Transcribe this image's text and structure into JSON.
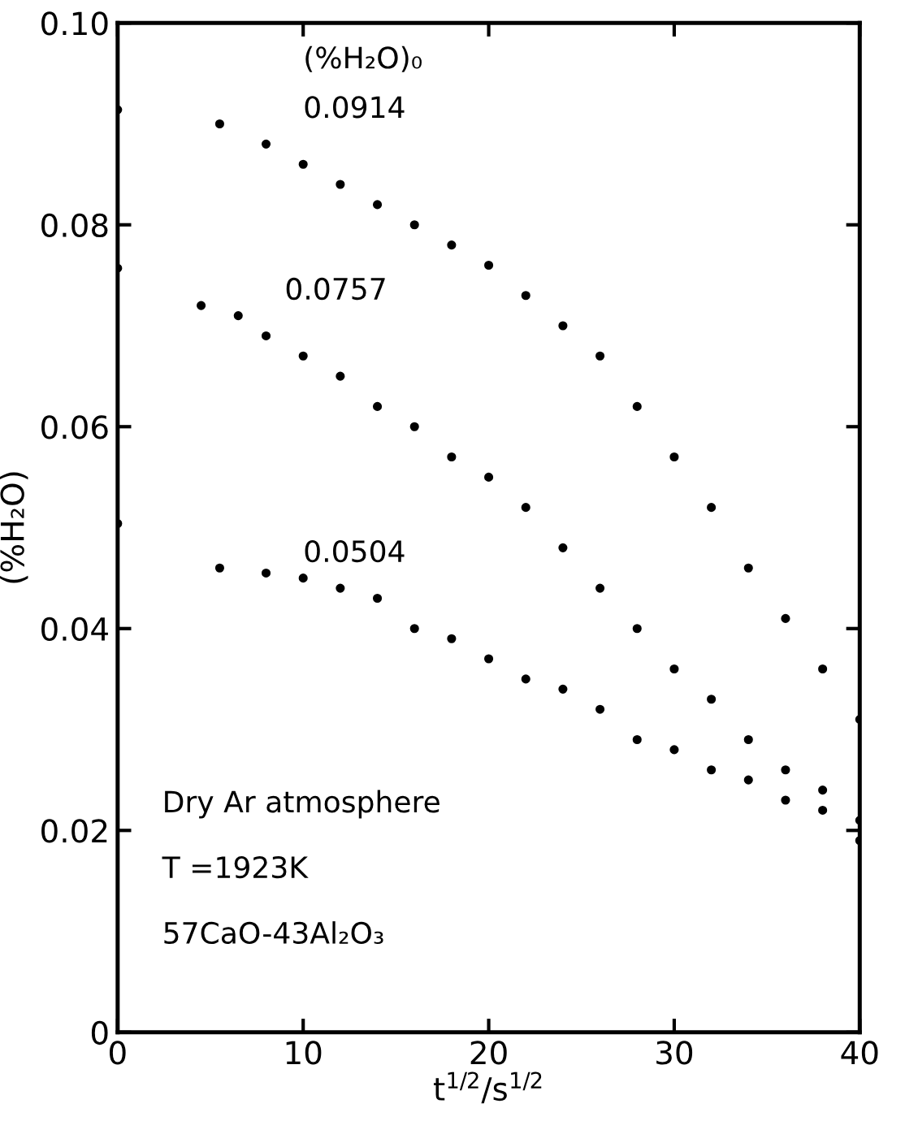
{
  "chart_data": {
    "type": "scatter",
    "xlabel": "t$^{1/2}$/s$^{1/2}$",
    "ylabel": "(%H₂O)",
    "legend_title": "(%H₂O)₀",
    "xlim": [
      0,
      40
    ],
    "ylim": [
      0,
      0.1
    ],
    "xticks": [
      0,
      10,
      20,
      30,
      40
    ],
    "yticks": [
      0,
      0.02,
      0.04,
      0.06,
      0.08,
      {
        "value": 0.1,
        "label": "0.10"
      }
    ],
    "grid": false,
    "marker": "circle",
    "annotations": [
      "Dry Ar atmosphere",
      "T =1923K",
      "57CaO-43Al₂O₃"
    ],
    "series": [
      {
        "name": "0.0914",
        "color": "#000000",
        "x": [
          0,
          5.5,
          8,
          10,
          12,
          14,
          16,
          18,
          20,
          22,
          24,
          26,
          28,
          30,
          32,
          34,
          36,
          38,
          40
        ],
        "values": [
          0.0914,
          0.09,
          0.088,
          0.086,
          0.084,
          0.082,
          0.08,
          0.078,
          0.076,
          0.073,
          0.07,
          0.067,
          0.062,
          0.057,
          0.052,
          0.046,
          0.041,
          0.036,
          0.031
        ]
      },
      {
        "name": "0.0757",
        "color": "#000000",
        "x": [
          0,
          4.5,
          6.5,
          8,
          10,
          12,
          14,
          16,
          18,
          20,
          22,
          24,
          26,
          28,
          30,
          32,
          34,
          36,
          38,
          40
        ],
        "values": [
          0.0757,
          0.072,
          0.071,
          0.069,
          0.067,
          0.065,
          0.062,
          0.06,
          0.057,
          0.055,
          0.052,
          0.048,
          0.044,
          0.04,
          0.036,
          0.033,
          0.029,
          0.026,
          0.024,
          0.021
        ]
      },
      {
        "name": "0.0504",
        "color": "#000000",
        "x": [
          0,
          5.5,
          8,
          10,
          12,
          14,
          16,
          18,
          20,
          22,
          24,
          26,
          28,
          30,
          32,
          34,
          36,
          38,
          40
        ],
        "values": [
          0.0504,
          0.046,
          0.0455,
          0.045,
          0.044,
          0.043,
          0.04,
          0.039,
          0.037,
          0.035,
          0.034,
          0.032,
          0.029,
          0.028,
          0.026,
          0.025,
          0.023,
          0.022,
          0.019
        ]
      }
    ]
  }
}
